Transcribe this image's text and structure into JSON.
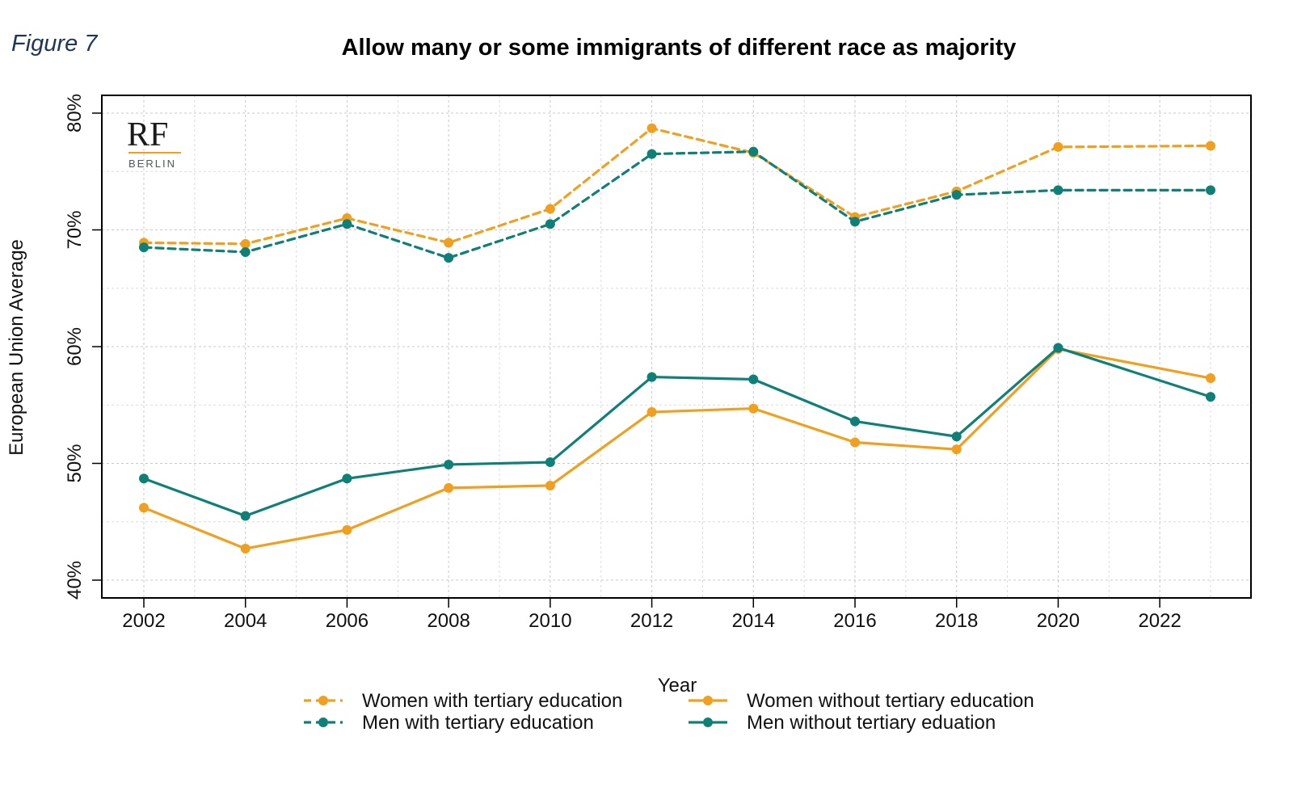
{
  "figure_label": "Figure 7",
  "logo": {
    "main": "RF",
    "sub": "BERLIN"
  },
  "colors": {
    "orange": "#F0A01E",
    "teal": "#0F8078",
    "grid": "#cccccc"
  },
  "chart_data": {
    "type": "line",
    "title": "Allow many or some immigrants of different race as majority",
    "xlabel": "Year",
    "ylabel": "European Union Average",
    "xlim": [
      2002,
      2023
    ],
    "ylim": [
      40,
      80
    ],
    "xticks": [
      2002,
      2004,
      2006,
      2008,
      2010,
      2012,
      2014,
      2016,
      2018,
      2020,
      2022
    ],
    "yticks": [
      40,
      50,
      60,
      70,
      80
    ],
    "ytick_labels": [
      "40%",
      "50%",
      "60%",
      "70%",
      "80%"
    ],
    "grid": true,
    "legend_position": "bottom",
    "x": [
      2002,
      2004,
      2006,
      2008,
      2010,
      2012,
      2014,
      2016,
      2018,
      2020,
      2023
    ],
    "series": [
      {
        "name": "Women with tertiary education",
        "color": "#F0A01E",
        "dashed": true,
        "values": [
          68.9,
          68.8,
          71.0,
          68.9,
          71.8,
          78.7,
          76.6,
          71.1,
          73.3,
          77.1,
          77.2
        ]
      },
      {
        "name": "Men with tertiary education",
        "color": "#0F8078",
        "dashed": true,
        "values": [
          68.5,
          68.1,
          70.5,
          67.6,
          70.5,
          76.5,
          76.7,
          70.7,
          73.0,
          73.4,
          73.4
        ]
      },
      {
        "name": "Women without tertiary education",
        "color": "#F0A01E",
        "dashed": false,
        "values": [
          46.2,
          42.7,
          44.3,
          47.9,
          48.1,
          54.4,
          54.7,
          51.8,
          51.2,
          59.8,
          57.3
        ]
      },
      {
        "name": "Men without tertiary eduation",
        "color": "#0F8078",
        "dashed": false,
        "values": [
          48.7,
          45.5,
          48.7,
          49.9,
          50.1,
          57.4,
          57.2,
          53.6,
          52.3,
          59.9,
          55.7
        ]
      }
    ]
  }
}
